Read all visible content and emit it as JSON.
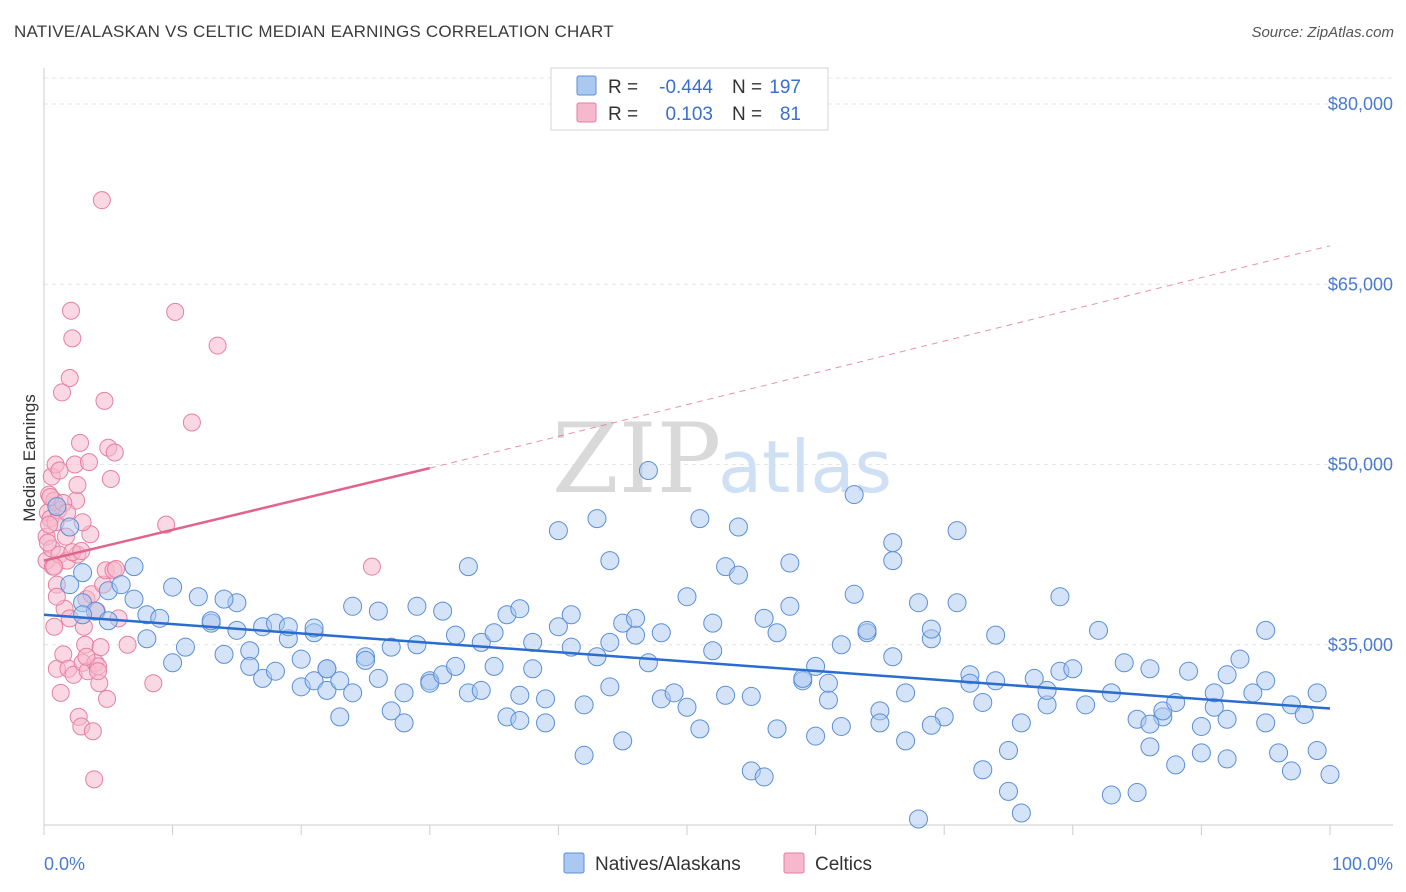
{
  "title": "NATIVE/ALASKAN VS CELTIC MEDIAN EARNINGS CORRELATION CHART",
  "source": "Source: ZipAtlas.com",
  "watermark": {
    "part1": "ZIP",
    "part2": "atlas"
  },
  "legend": {
    "rows": [
      {
        "r_label": "R =",
        "r_value": "-0.444",
        "n_label": "N =",
        "n_value": "197"
      },
      {
        "r_label": "R =",
        "r_value": "0.103",
        "n_label": "N =",
        "n_value": "81"
      }
    ]
  },
  "bottom_legend": [
    "Natives/Alaskans",
    "Celtics"
  ],
  "colors": {
    "blue_fill": "#aac8f0",
    "blue_stroke": "#5a8fd8",
    "blue_line": "#2a6dcf",
    "pink_fill": "#f6b8cc",
    "pink_stroke": "#e77fa0",
    "pink_line": "#e0648c",
    "tick_text": "#4a7bd0",
    "grid": "#e6e6e6"
  },
  "chart_data": {
    "type": "scatter",
    "title": "NATIVE/ALASKAN VS CELTIC MEDIAN EARNINGS CORRELATION CHART",
    "xlabel": "",
    "ylabel": "Median Earnings",
    "x_tick_labels": [
      "0.0%",
      "100.0%"
    ],
    "y_ticks": [
      35000,
      50000,
      65000,
      80000
    ],
    "y_tick_labels": [
      "$35,000",
      "$50,000",
      "$65,000",
      "$80,000"
    ],
    "xlim": [
      0,
      100
    ],
    "ylim": [
      20000,
      83000
    ],
    "grid": "horizontal dashed",
    "series": [
      {
        "name": "Natives/Alaskans",
        "r": -0.444,
        "n": 197,
        "trend": {
          "x": [
            0,
            100
          ],
          "y": [
            37500,
            29700
          ],
          "style": "solid"
        },
        "points": [
          [
            2,
            40000
          ],
          [
            3,
            38500
          ],
          [
            4,
            37800
          ],
          [
            5,
            39500
          ],
          [
            6,
            40000
          ],
          [
            7,
            38800
          ],
          [
            7,
            41500
          ],
          [
            8,
            35500
          ],
          [
            8,
            37500
          ],
          [
            9,
            37200
          ],
          [
            10,
            39800
          ],
          [
            10,
            33500
          ],
          [
            11,
            34800
          ],
          [
            12,
            39000
          ],
          [
            13,
            36800
          ],
          [
            13,
            37000
          ],
          [
            14,
            34200
          ],
          [
            15,
            38500
          ],
          [
            15,
            36200
          ],
          [
            16,
            34500
          ],
          [
            16,
            33200
          ],
          [
            17,
            36500
          ],
          [
            17,
            32200
          ],
          [
            18,
            36800
          ],
          [
            18,
            32800
          ],
          [
            19,
            35500
          ],
          [
            19,
            36500
          ],
          [
            20,
            31500
          ],
          [
            20,
            33800
          ],
          [
            21,
            36000
          ],
          [
            21,
            32000
          ],
          [
            22,
            31200
          ],
          [
            22,
            33000
          ],
          [
            23,
            29000
          ],
          [
            23,
            32000
          ],
          [
            24,
            31000
          ],
          [
            24,
            38200
          ],
          [
            25,
            34000
          ],
          [
            26,
            37800
          ],
          [
            26,
            32200
          ],
          [
            27,
            34800
          ],
          [
            27,
            29500
          ],
          [
            28,
            31000
          ],
          [
            28,
            28500
          ],
          [
            29,
            38200
          ],
          [
            29,
            35000
          ],
          [
            30,
            32000
          ],
          [
            30,
            31800
          ],
          [
            31,
            32500
          ],
          [
            31,
            37800
          ],
          [
            32,
            35800
          ],
          [
            32,
            33200
          ],
          [
            33,
            31000
          ],
          [
            33,
            41500
          ],
          [
            34,
            35200
          ],
          [
            34,
            31200
          ],
          [
            35,
            36000
          ],
          [
            35,
            33200
          ],
          [
            36,
            29000
          ],
          [
            36,
            37500
          ],
          [
            37,
            30800
          ],
          [
            37,
            38000
          ],
          [
            38,
            33000
          ],
          [
            38,
            35200
          ],
          [
            39,
            30500
          ],
          [
            39,
            28500
          ],
          [
            40,
            44500
          ],
          [
            40,
            36500
          ],
          [
            41,
            37500
          ],
          [
            41,
            34800
          ],
          [
            42,
            30000
          ],
          [
            42,
            25800
          ],
          [
            43,
            45500
          ],
          [
            43,
            34000
          ],
          [
            44,
            42000
          ],
          [
            44,
            31500
          ],
          [
            45,
            27000
          ],
          [
            45,
            36800
          ],
          [
            46,
            35800
          ],
          [
            46,
            37200
          ],
          [
            47,
            33500
          ],
          [
            48,
            30500
          ],
          [
            48,
            36000
          ],
          [
            49,
            31000
          ],
          [
            50,
            39000
          ],
          [
            50,
            29800
          ],
          [
            51,
            45500
          ],
          [
            51,
            28000
          ],
          [
            52,
            36800
          ],
          [
            52,
            34500
          ],
          [
            53,
            30800
          ],
          [
            53,
            41500
          ],
          [
            54,
            44800
          ],
          [
            54,
            40800
          ],
          [
            55,
            30700
          ],
          [
            55,
            24500
          ],
          [
            56,
            24000
          ],
          [
            56,
            37200
          ],
          [
            57,
            28000
          ],
          [
            58,
            38200
          ],
          [
            58,
            41800
          ],
          [
            59,
            32000
          ],
          [
            59,
            32200
          ],
          [
            60,
            33200
          ],
          [
            61,
            30400
          ],
          [
            61,
            31800
          ],
          [
            62,
            35000
          ],
          [
            62,
            28200
          ],
          [
            63,
            39200
          ],
          [
            63,
            47500
          ],
          [
            64,
            36000
          ],
          [
            64,
            36200
          ],
          [
            65,
            29500
          ],
          [
            65,
            28500
          ],
          [
            66,
            42000
          ],
          [
            66,
            34000
          ],
          [
            67,
            27000
          ],
          [
            67,
            31000
          ],
          [
            68,
            20500
          ],
          [
            68,
            38500
          ],
          [
            69,
            35500
          ],
          [
            69,
            36300
          ],
          [
            70,
            29000
          ],
          [
            71,
            44500
          ],
          [
            71,
            38500
          ],
          [
            72,
            32500
          ],
          [
            72,
            31800
          ],
          [
            73,
            30200
          ],
          [
            74,
            35800
          ],
          [
            74,
            32000
          ],
          [
            75,
            26200
          ],
          [
            75,
            22800
          ],
          [
            76,
            28500
          ],
          [
            76,
            21000
          ],
          [
            77,
            32200
          ],
          [
            78,
            30000
          ],
          [
            78,
            31200
          ],
          [
            79,
            32800
          ],
          [
            79,
            39000
          ],
          [
            80,
            33000
          ],
          [
            81,
            30000
          ],
          [
            82,
            36200
          ],
          [
            83,
            31000
          ],
          [
            83,
            22500
          ],
          [
            84,
            33500
          ],
          [
            85,
            28800
          ],
          [
            86,
            33000
          ],
          [
            86,
            26500
          ],
          [
            87,
            29000
          ],
          [
            87,
            29500
          ],
          [
            88,
            30200
          ],
          [
            88,
            25000
          ],
          [
            89,
            32800
          ],
          [
            90,
            28200
          ],
          [
            90,
            26000
          ],
          [
            91,
            29800
          ],
          [
            91,
            31000
          ],
          [
            92,
            25500
          ],
          [
            92,
            28800
          ],
          [
            93,
            33800
          ],
          [
            94,
            31000
          ],
          [
            95,
            32000
          ],
          [
            95,
            28500
          ],
          [
            96,
            26000
          ],
          [
            97,
            30000
          ],
          [
            97,
            24500
          ],
          [
            98,
            29200
          ],
          [
            99,
            31000
          ],
          [
            99,
            26200
          ],
          [
            100,
            24200
          ],
          [
            5,
            37000
          ],
          [
            21,
            36400
          ],
          [
            47,
            49500
          ],
          [
            69,
            28300
          ],
          [
            73,
            24600
          ],
          [
            86,
            28400
          ],
          [
            92,
            32500
          ],
          [
            66,
            43500
          ],
          [
            60,
            27400
          ],
          [
            44,
            35200
          ],
          [
            37,
            28700
          ],
          [
            25,
            33700
          ],
          [
            14,
            38800
          ],
          [
            3,
            37500
          ],
          [
            2,
            44800
          ],
          [
            57,
            36000
          ],
          [
            85,
            22700
          ],
          [
            95,
            36200
          ],
          [
            1,
            46500
          ],
          [
            3,
            41000
          ],
          [
            22,
            33000
          ]
        ]
      },
      {
        "name": "Celtics",
        "r": 0.103,
        "n": 81,
        "trend": {
          "x": [
            0,
            30
          ],
          "y": [
            42000,
            49700
          ],
          "style": "solid",
          "extended_to": {
            "x": 100,
            "y": 68200,
            "style": "dashed"
          }
        },
        "points": [
          [
            0.2,
            42000
          ],
          [
            0.2,
            44000
          ],
          [
            0.3,
            46000
          ],
          [
            0.4,
            47500
          ],
          [
            0.5,
            45500
          ],
          [
            0.6,
            43000
          ],
          [
            0.6,
            49000
          ],
          [
            0.7,
            41500
          ],
          [
            0.8,
            47000
          ],
          [
            0.8,
            36500
          ],
          [
            0.9,
            50000
          ],
          [
            1.0,
            40000
          ],
          [
            1.0,
            33000
          ],
          [
            1.1,
            46200
          ],
          [
            1.2,
            42500
          ],
          [
            1.3,
            31000
          ],
          [
            1.4,
            56000
          ],
          [
            1.5,
            34200
          ],
          [
            1.6,
            38000
          ],
          [
            1.7,
            44000
          ],
          [
            1.8,
            42000
          ],
          [
            1.9,
            33000
          ],
          [
            2.0,
            57200
          ],
          [
            2.1,
            62800
          ],
          [
            2.2,
            60500
          ],
          [
            2.3,
            32500
          ],
          [
            2.4,
            50000
          ],
          [
            2.5,
            47000
          ],
          [
            2.6,
            42500
          ],
          [
            2.7,
            29000
          ],
          [
            2.8,
            51800
          ],
          [
            2.9,
            28200
          ],
          [
            3.0,
            33500
          ],
          [
            3.1,
            36500
          ],
          [
            3.2,
            35000
          ],
          [
            3.3,
            38800
          ],
          [
            3.4,
            32800
          ],
          [
            3.5,
            50200
          ],
          [
            3.6,
            44200
          ],
          [
            3.7,
            39200
          ],
          [
            3.8,
            27800
          ],
          [
            3.9,
            23800
          ],
          [
            4.0,
            33500
          ],
          [
            4.1,
            37800
          ],
          [
            4.2,
            33200
          ],
          [
            4.3,
            31800
          ],
          [
            4.4,
            34800
          ],
          [
            4.5,
            72000
          ],
          [
            4.6,
            40000
          ],
          [
            4.7,
            55300
          ],
          [
            4.8,
            41200
          ],
          [
            4.9,
            30500
          ],
          [
            5.0,
            51400
          ],
          [
            5.2,
            48800
          ],
          [
            5.4,
            41200
          ],
          [
            5.5,
            51000
          ],
          [
            5.6,
            41300
          ],
          [
            5.8,
            37200
          ],
          [
            6.5,
            35000
          ],
          [
            8.5,
            31800
          ],
          [
            9.5,
            45000
          ],
          [
            10.2,
            62700
          ],
          [
            11.5,
            53500
          ],
          [
            13.5,
            59900
          ],
          [
            25.5,
            41500
          ],
          [
            0.5,
            47300
          ],
          [
            0.9,
            45200
          ],
          [
            1.5,
            46800
          ],
          [
            2.2,
            42700
          ],
          [
            3.0,
            45200
          ],
          [
            1.0,
            39000
          ],
          [
            1.8,
            46000
          ],
          [
            2.6,
            48300
          ],
          [
            0.4,
            45000
          ],
          [
            0.3,
            43500
          ],
          [
            1.2,
            49500
          ],
          [
            3.3,
            34000
          ],
          [
            2.0,
            37200
          ],
          [
            4.2,
            32800
          ],
          [
            0.8,
            41500
          ],
          [
            2.9,
            42800
          ]
        ]
      }
    ]
  }
}
